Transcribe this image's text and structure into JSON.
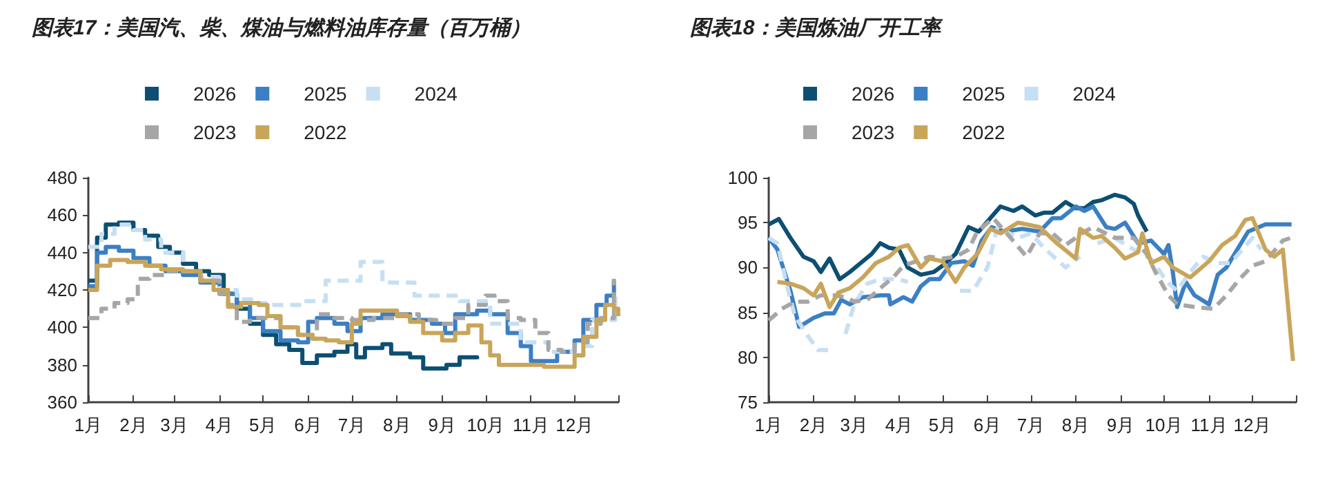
{
  "chart_data": [
    {
      "type": "step",
      "title": "图表17：美国汽、柴、煤油与燃料油库存量（百万桶）",
      "legend": "top",
      "marker": "none",
      "xlim": [
        "--01-01",
        "--12-31"
      ],
      "xticks": [
        {
          "value": "--01-01",
          "label": "1月"
        },
        {
          "value": "--02-01",
          "label": "2月"
        },
        {
          "value": "--03-01",
          "label": "3月"
        },
        {
          "value": "--04-01",
          "label": "4月"
        },
        {
          "value": "--05-01",
          "label": "5月"
        },
        {
          "value": "--06-01",
          "label": "6月"
        },
        {
          "value": "--07-01",
          "label": "7月"
        },
        {
          "value": "--08-01",
          "label": "8月"
        },
        {
          "value": "--09-01",
          "label": "9月"
        },
        {
          "value": "--10-01",
          "label": "10月"
        },
        {
          "value": "--11-01",
          "label": "11月"
        },
        {
          "value": "--12-01",
          "label": "12月"
        },
        {
          "value": "--12-31",
          "label": null
        }
      ],
      "ylim": [
        360,
        480
      ],
      "yticks": [
        360,
        380,
        400,
        420,
        440,
        460,
        480
      ],
      "series": [
        {
          "name": "2026",
          "color": "#0d4f72",
          "line_style": "solid",
          "x": [
            "--01-01",
            "--01-07",
            "--01-13",
            "--01-22",
            "--02-01",
            "--02-09",
            "--02-18",
            "--02-26",
            "--03-07",
            "--03-16",
            "--03-25",
            "--04-04",
            "--04-13",
            "--04-22",
            "--05-01",
            "--05-10",
            "--05-19",
            "--05-28",
            "--06-07",
            "--06-19",
            "--06-28",
            "--07-04",
            "--07-10",
            "--07-22",
            "--07-28",
            "--08-10",
            "--08-19",
            "--09-04",
            "--09-13",
            "--09-25"
          ],
          "values": [
            425,
            448,
            455,
            456,
            452,
            449,
            443,
            440,
            434,
            430,
            428,
            418,
            410,
            402,
            396,
            391,
            388,
            381,
            385,
            387,
            391,
            384,
            389,
            391,
            386,
            384,
            378,
            380,
            384,
            383
          ]
        },
        {
          "name": "2025",
          "color": "#3b7fc4",
          "line_style": "solid",
          "x": [
            "--01-01",
            "--01-07",
            "--01-13",
            "--01-22",
            "--02-01",
            "--02-12",
            "--02-23",
            "--03-07",
            "--03-19",
            "--04-01",
            "--04-13",
            "--04-22",
            "--05-01",
            "--05-13",
            "--05-25",
            "--06-01",
            "--06-07",
            "--06-19",
            "--06-28",
            "--07-07",
            "--07-22",
            "--08-10",
            "--08-25",
            "--09-03",
            "--09-10",
            "--09-25",
            "--10-04",
            "--10-16",
            "--10-25",
            "--11-01",
            "--11-10",
            "--11-19",
            "--12-01",
            "--12-07",
            "--12-16",
            "--12-23",
            "--12-28"
          ],
          "values": [
            422,
            440,
            443,
            441,
            437,
            433,
            430,
            428,
            424,
            418,
            413,
            405,
            398,
            393,
            392,
            403,
            405,
            402,
            398,
            405,
            407,
            404,
            402,
            397,
            407,
            409,
            407,
            397,
            390,
            382,
            382,
            387,
            393,
            404,
            412,
            417,
            425
          ]
        },
        {
          "name": "2024",
          "color": "#c6dff2",
          "line_style": "dashed",
          "x": [
            "--01-01",
            "--01-10",
            "--01-19",
            "--02-01",
            "--02-09",
            "--02-20",
            "--03-07",
            "--03-19",
            "--04-01",
            "--04-13",
            "--04-25",
            "--05-07",
            "--05-19",
            "--05-28",
            "--06-13",
            "--06-25",
            "--07-07",
            "--07-16",
            "--07-22",
            "--08-07",
            "--08-13",
            "--09-04",
            "--09-13",
            "--10-01",
            "--10-04",
            "--10-16",
            "--10-25",
            "--11-07",
            "--11-13",
            "--12-01",
            "--12-13",
            "--12-29"
          ],
          "values": [
            443,
            450,
            455,
            452,
            447,
            440,
            430,
            427,
            420,
            415,
            413,
            412,
            412,
            414,
            425,
            425,
            435,
            435,
            424,
            424,
            417,
            417,
            414,
            414,
            402,
            402,
            392,
            392,
            387,
            390,
            404,
            419
          ]
        },
        {
          "name": "2023",
          "color": "#a6a6a6",
          "line_style": "dashed",
          "x": [
            "--01-01",
            "--01-10",
            "--01-19",
            "--01-28",
            "--02-04",
            "--02-12",
            "--02-23",
            "--03-07",
            "--03-19",
            "--04-01",
            "--04-07",
            "--04-13",
            "--04-22",
            "--05-01",
            "--05-13",
            "--05-25",
            "--06-04",
            "--06-07",
            "--06-19",
            "--07-01",
            "--07-16",
            "--08-01",
            "--08-16",
            "--08-28",
            "--09-10",
            "--09-19",
            "--10-01",
            "--10-07",
            "--10-16",
            "--10-25",
            "--11-04",
            "--11-13",
            "--11-22",
            "--12-01",
            "--12-10",
            "--12-19",
            "--12-28"
          ],
          "values": [
            405,
            410,
            413,
            415,
            426,
            428,
            430,
            430,
            425,
            418,
            412,
            403,
            405,
            405,
            400,
            396,
            394,
            407,
            405,
            404,
            405,
            407,
            404,
            402,
            405,
            412,
            417,
            414,
            405,
            404,
            397,
            388,
            387,
            392,
            402,
            405,
            426
          ]
        },
        {
          "name": "2022",
          "color": "#c9a55a",
          "line_style": "solid",
          "x": [
            "--01-01",
            "--01-07",
            "--01-16",
            "--01-28",
            "--02-09",
            "--02-20",
            "--03-07",
            "--03-19",
            "--03-28",
            "--04-07",
            "--04-16",
            "--04-28",
            "--05-04",
            "--05-13",
            "--05-25",
            "--06-04",
            "--06-13",
            "--06-22",
            "--07-01",
            "--07-07",
            "--07-22",
            "--08-01",
            "--08-10",
            "--08-19",
            "--09-01",
            "--09-10",
            "--09-19",
            "--09-28",
            "--10-04",
            "--10-10",
            "--10-25",
            "--11-10",
            "--11-22",
            "--12-01",
            "--12-07",
            "--12-16",
            "--12-22",
            "--12-28",
            "--12-31"
          ],
          "values": [
            420,
            433,
            436,
            435,
            433,
            431,
            430,
            425,
            420,
            411,
            413,
            412,
            406,
            400,
            396,
            394,
            393,
            392,
            402,
            409,
            409,
            406,
            403,
            397,
            393,
            397,
            401,
            392,
            385,
            380,
            380,
            379,
            379,
            385,
            395,
            404,
            412,
            410,
            406
          ]
        }
      ]
    },
    {
      "type": "line",
      "title": "图表18：美国炼油厂开工率",
      "legend": "top",
      "marker": "none",
      "xlim": [
        "--01-01",
        "--12-31"
      ],
      "xticks": [
        {
          "value": "--01-01",
          "label": "1月"
        },
        {
          "value": "--02-01",
          "label": "2月"
        },
        {
          "value": "--03-01",
          "label": "3月"
        },
        {
          "value": "--04-01",
          "label": "4月"
        },
        {
          "value": "--05-01",
          "label": "5月"
        },
        {
          "value": "--06-01",
          "label": "6月"
        },
        {
          "value": "--07-01",
          "label": "7月"
        },
        {
          "value": "--08-01",
          "label": "8月"
        },
        {
          "value": "--09-01",
          "label": "9月"
        },
        {
          "value": "--10-01",
          "label": "10月"
        },
        {
          "value": "--11-01",
          "label": "11月"
        },
        {
          "value": "--12-01",
          "label": "12月"
        },
        {
          "value": "--12-31",
          "label": null
        }
      ],
      "ylim": [
        75,
        100
      ],
      "yticks": [
        75,
        80,
        85,
        90,
        95,
        100
      ],
      "series": [
        {
          "name": "2026",
          "color": "#0d4f72",
          "line_style": "solid",
          "x": [
            "--01-01",
            "--01-08",
            "--01-16",
            "--01-25",
            "--02-01",
            "--02-06",
            "--02-12",
            "--02-19",
            "--02-26",
            "--03-07",
            "--03-13",
            "--03-19",
            "--03-25",
            "--04-01",
            "--04-07",
            "--04-16",
            "--04-25",
            "--05-01",
            "--05-10",
            "--05-19",
            "--05-26",
            "--06-10",
            "--06-19",
            "--06-25",
            "--07-04",
            "--07-10",
            "--07-16",
            "--07-25",
            "--08-01",
            "--08-07",
            "--08-13",
            "--08-19",
            "--08-28",
            "--09-04",
            "--09-10",
            "--09-13",
            "--09-19"
          ],
          "values": [
            94.8,
            95.4,
            93.3,
            91.2,
            90.7,
            89.5,
            91,
            88.7,
            89.5,
            90.7,
            91.5,
            92.7,
            92.2,
            92,
            90,
            89.2,
            89.5,
            90.2,
            91.5,
            94.5,
            94,
            96.8,
            96.3,
            96.8,
            95.8,
            96.1,
            96.1,
            97.3,
            96.6,
            96.6,
            97.3,
            97.5,
            98.1,
            97.8,
            97.1,
            95.8,
            94
          ]
        },
        {
          "name": "2025",
          "color": "#3b7fc4",
          "line_style": "solid",
          "x": [
            "--01-01",
            "--01-07",
            "--01-16",
            "--01-22",
            "--02-01",
            "--02-09",
            "--02-15",
            "--02-20",
            "--02-26",
            "--03-07",
            "--03-19",
            "--03-25",
            "--03-26",
            "--04-04",
            "--04-10",
            "--04-16",
            "--04-22",
            "--04-29",
            "--05-07",
            "--05-16",
            "--05-22",
            "--05-28",
            "--06-04",
            "--06-13",
            "--06-25",
            "--07-07",
            "--07-16",
            "--07-22",
            "--08-01",
            "--08-07",
            "--08-13",
            "--08-22",
            "--08-28",
            "--09-04",
            "--09-13",
            "--09-22",
            "--10-01",
            "--10-04",
            "--10-07",
            "--10-10",
            "--10-16",
            "--10-22",
            "--11-01",
            "--11-07",
            "--11-13",
            "--11-28",
            "--12-10",
            "--12-28"
          ],
          "values": [
            93.3,
            92,
            87.4,
            83.4,
            84.4,
            84.9,
            84.9,
            86.4,
            85.9,
            86.7,
            86.9,
            86.9,
            85.9,
            86.7,
            86.2,
            87.9,
            88.7,
            88.7,
            90.5,
            90.7,
            90.2,
            93,
            94.5,
            94,
            94.3,
            94,
            95.5,
            95.5,
            96.8,
            96.3,
            96.8,
            94.5,
            94.3,
            95,
            92.7,
            93,
            91.5,
            92.5,
            89.5,
            85.6,
            88.4,
            86.9,
            85.9,
            89.2,
            90,
            94,
            94.8,
            94.8
          ]
        },
        {
          "name": "2024",
          "color": "#c6dff2",
          "line_style": "dashed",
          "x": [
            "--01-01",
            "--01-07",
            "--01-13",
            "--01-19",
            "--01-28",
            "--02-04",
            "--02-12",
            "--02-18",
            "--02-23",
            "--03-01",
            "--03-10",
            "--03-19",
            "--04-01",
            "--04-07",
            "--04-16",
            "--05-13",
            "--05-22",
            "--06-01",
            "--06-08",
            "--06-22",
            "--07-01",
            "--07-10",
            "--07-25",
            "--08-04",
            "--08-10",
            "--08-16",
            "--08-28",
            "--09-10",
            "--09-22",
            "--10-03",
            "--10-10",
            "--10-19",
            "--10-28",
            "--11-07",
            "--11-16",
            "--11-25",
            "--12-01",
            "--12-07"
          ],
          "values": [
            93.3,
            92.7,
            88.4,
            84.6,
            82.4,
            80.8,
            80.8,
            null,
            82.6,
            85.9,
            88.2,
            88.7,
            88.7,
            88.4,
            null,
            87.4,
            87.4,
            90,
            94.5,
            93.3,
            93.8,
            92.2,
            90,
            91.2,
            null,
            92.7,
            93.3,
            92,
            91,
            88.4,
            87.4,
            89.5,
            91.2,
            90.5,
            90.5,
            92.2,
            93.3,
            92
          ]
        },
        {
          "name": "2023",
          "color": "#a6a6a6",
          "line_style": "dashed",
          "x": [
            "--01-01",
            "--01-10",
            "--01-19",
            "--01-28",
            "--02-06",
            "--02-15",
            "--02-23",
            "--03-01",
            "--03-10",
            "--03-19",
            "--03-28",
            "--04-04",
            "--04-13",
            "--04-22",
            "--05-01",
            "--05-10",
            "--05-19",
            "--05-25",
            "--06-05",
            "--06-16",
            "--06-28",
            "--07-07",
            "--07-16",
            "--07-25",
            "--08-07",
            "--08-13",
            "--08-28",
            "--09-10",
            "--09-19",
            "--09-25",
            "--10-04",
            "--10-10",
            "--10-22",
            "--11-04",
            "--11-13",
            "--11-22",
            "--12-01",
            "--12-10",
            "--12-22",
            "--12-31"
          ],
          "values": [
            84.1,
            85.4,
            86.2,
            86.2,
            86.9,
            86.9,
            86.7,
            86.2,
            86.4,
            87.7,
            88.9,
            90.2,
            90.7,
            91.2,
            91,
            91.2,
            92,
            94,
            95.5,
            93.5,
            91.2,
            93.8,
            93.8,
            92.5,
            94,
            94.5,
            93.3,
            93.3,
            91.5,
            89.5,
            86.9,
            85.9,
            85.6,
            85.4,
            86.9,
            88.7,
            90.2,
            90.7,
            93,
            93.5
          ]
        },
        {
          "name": "2022",
          "color": "#c9a55a",
          "line_style": "solid",
          "x": [
            "--01-07",
            "--01-16",
            "--01-25",
            "--02-01",
            "--02-06",
            "--02-12",
            "--02-18",
            "--02-26",
            "--03-07",
            "--03-16",
            "--03-25",
            "--04-01",
            "--04-07",
            "--04-16",
            "--04-22",
            "--05-01",
            "--05-10",
            "--05-16",
            "--05-25",
            "--06-03",
            "--06-10",
            "--06-22",
            "--06-28",
            "--07-07",
            "--07-19",
            "--08-01",
            "--08-04",
            "--08-13",
            "--08-19",
            "--08-28",
            "--09-04",
            "--09-13",
            "--09-16",
            "--09-22",
            "--10-01",
            "--10-07",
            "--10-19",
            "--11-01",
            "--11-10",
            "--11-19",
            "--11-26",
            "--12-01",
            "--12-10",
            "--12-16",
            "--12-22",
            "--12-29"
          ],
          "values": [
            88.4,
            88.2,
            87.7,
            86.9,
            88.2,
            85.6,
            87.2,
            87.7,
            88.9,
            90.5,
            91.2,
            92.2,
            92.5,
            90,
            91,
            90.7,
            88.4,
            90,
            91.5,
            94.3,
            93.8,
            95,
            94.8,
            94.5,
            92.7,
            91,
            94.3,
            93.3,
            93.5,
            92.2,
            91,
            91.7,
            93.8,
            90.5,
            91.2,
            90,
            88.9,
            90.7,
            92.5,
            93.5,
            95.3,
            95.5,
            92,
            91.2,
            92,
            79.6
          ]
        }
      ]
    }
  ]
}
